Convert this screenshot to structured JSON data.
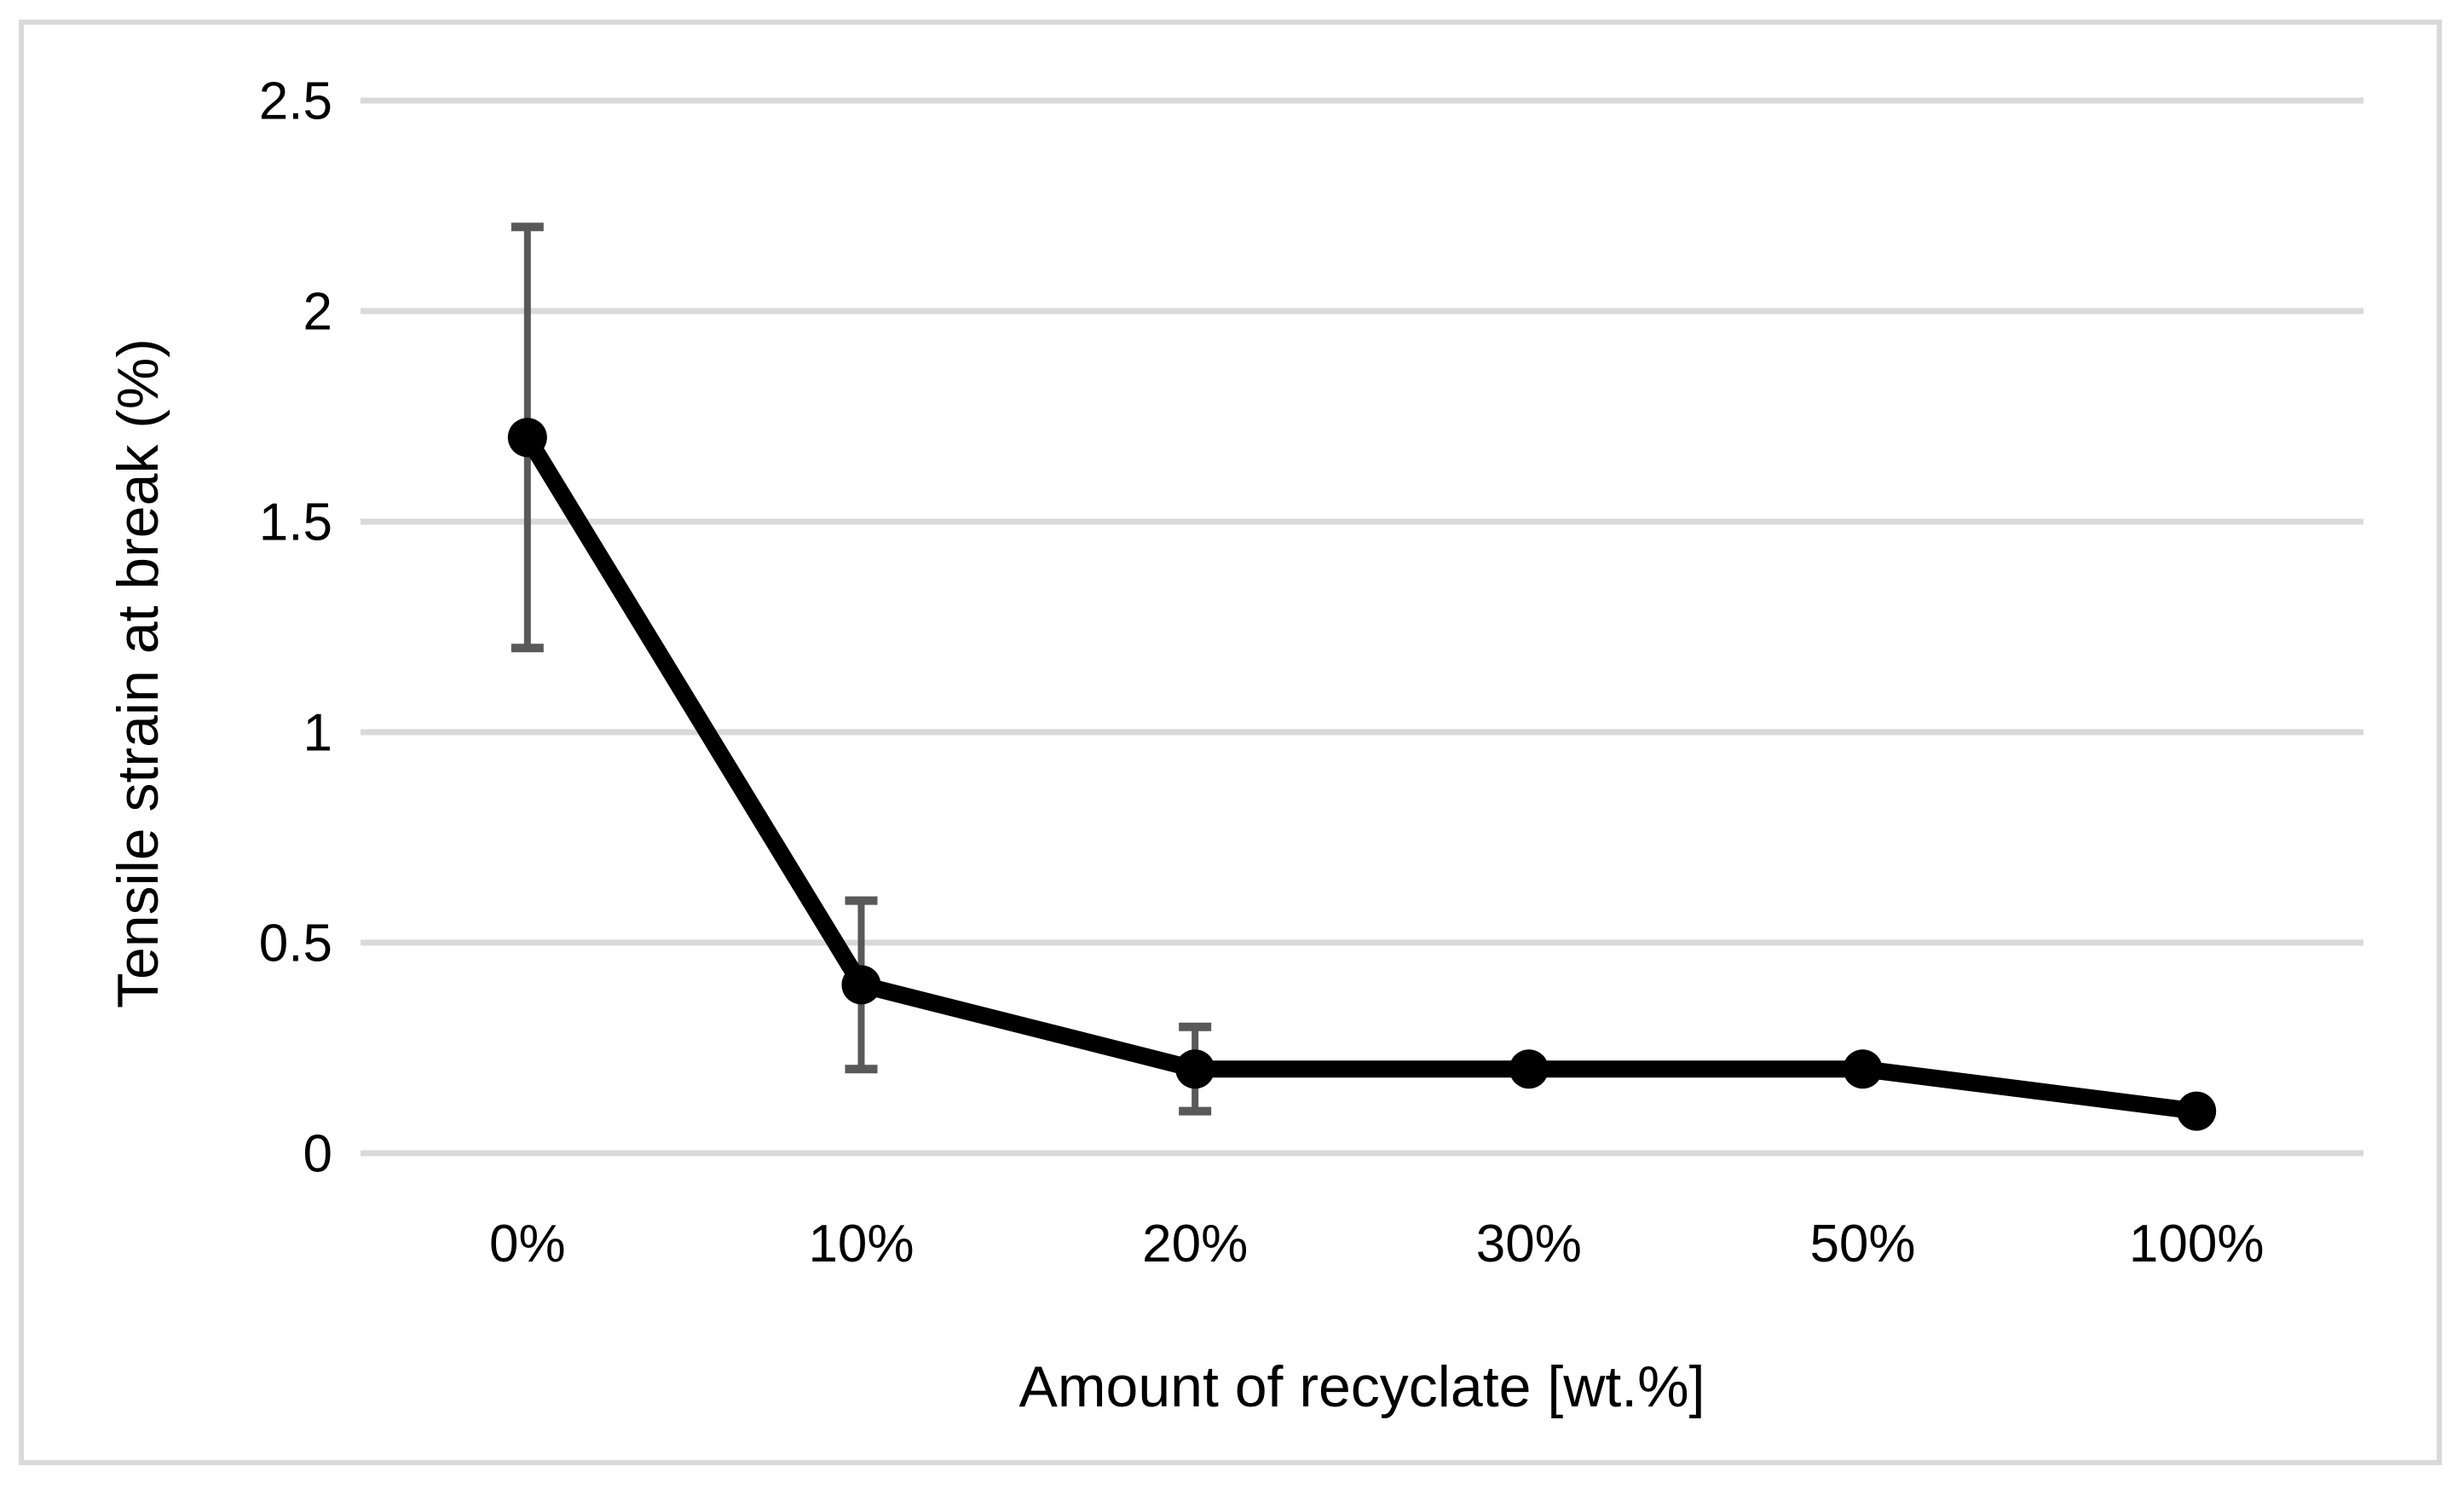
{
  "chart_data": {
    "type": "line",
    "title": "",
    "categories": [
      "0%",
      "10%",
      "20%",
      "30%",
      "50%",
      "100%"
    ],
    "series": [
      {
        "name": "Tensile strain at break",
        "values": [
          1.7,
          0.4,
          0.2,
          0.2,
          0.2,
          0.1
        ],
        "error_bars": [
          0.5,
          0.2,
          0.1,
          0,
          0,
          0
        ]
      }
    ],
    "xlabel": "Amount of recyclate [wt.%]",
    "ylabel": "Tensile strain at break (%)",
    "ylim": [
      0,
      2.5
    ],
    "yticks": [
      0,
      0.5,
      1,
      1.5,
      2,
      2.5
    ],
    "ytick_labels": [
      "0",
      "0.5",
      "1",
      "1.5",
      "2",
      "2.5"
    ],
    "xaxis_type": "category",
    "grid": "horizontal",
    "legend": "none",
    "marker": "filled-circle",
    "colors": {
      "line": "#000000",
      "marker": "#000000",
      "error_bar": "#595959",
      "gridline": "#d9d9d9",
      "border": "#d9d9d9",
      "background": "#ffffff",
      "text": "#000000"
    }
  }
}
